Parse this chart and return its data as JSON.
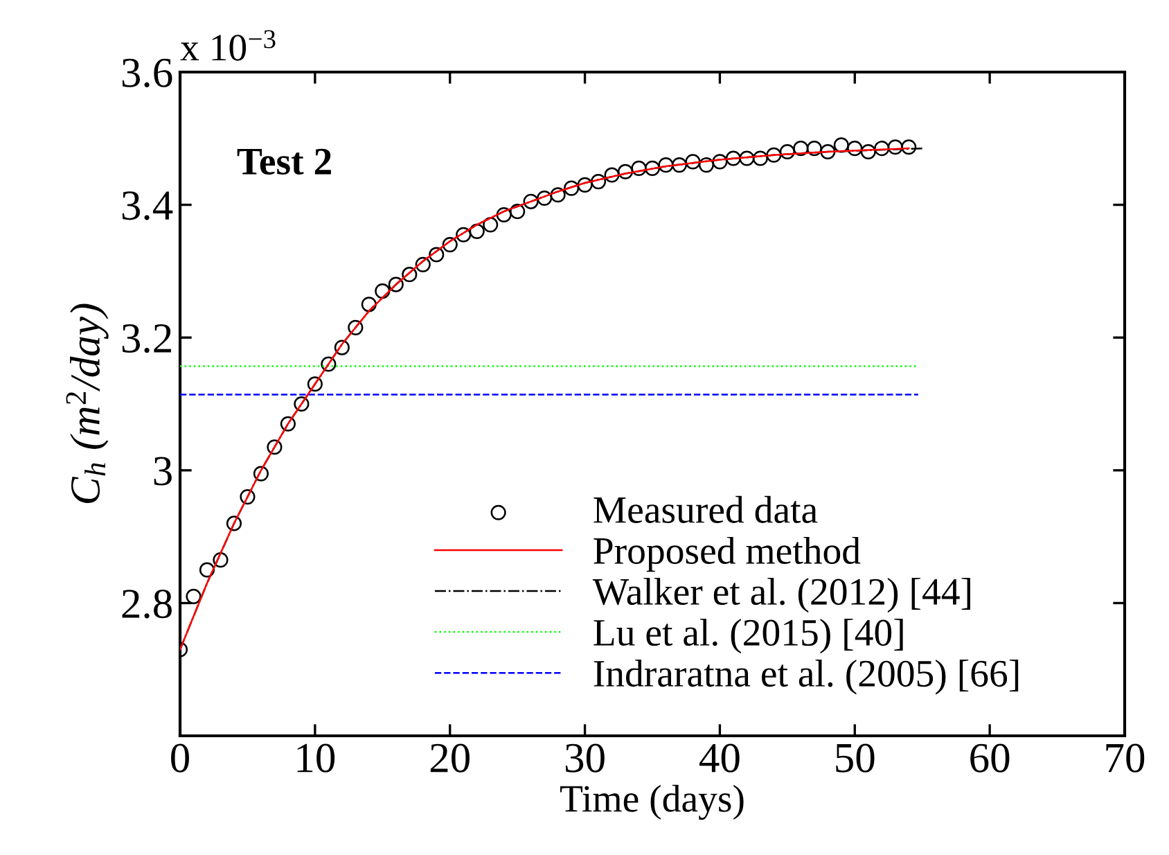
{
  "chart_data": {
    "type": "line",
    "xlabel": "Time (days)",
    "ylabel": "C$_{h}$ (m$^{2}$/day)",
    "annotations": [
      "x 10$^{−3}$",
      "Test 2"
    ],
    "xlim": [
      0,
      70
    ],
    "xticks": [
      0,
      10,
      20,
      30,
      40,
      50,
      60,
      70
    ],
    "ylim": [
      2.6,
      3.6
    ],
    "yticks": [
      2.8,
      3,
      3.2,
      3.4,
      3.6
    ],
    "grid": false,
    "legend": "bottom",
    "series": [
      {
        "name": "Measured data",
        "type": "scatter",
        "marker": "circle",
        "color": "#000000",
        "x": [
          0,
          1,
          2,
          3,
          4,
          5,
          6,
          7,
          8,
          9,
          10,
          11,
          12,
          13,
          14,
          15,
          16,
          17,
          18,
          19,
          20,
          21,
          22,
          23,
          24,
          25,
          26,
          27,
          28,
          29,
          30,
          31,
          32,
          33,
          34,
          35,
          36,
          37,
          38,
          39,
          40,
          41,
          42,
          43,
          44,
          45,
          46,
          47,
          48,
          49,
          50,
          51,
          52,
          53,
          54
        ],
        "values": [
          2.73,
          2.81,
          2.85,
          2.865,
          2.92,
          2.96,
          2.995,
          3.035,
          3.07,
          3.1,
          3.13,
          3.16,
          3.185,
          3.215,
          3.25,
          3.27,
          3.28,
          3.295,
          3.31,
          3.325,
          3.34,
          3.355,
          3.36,
          3.37,
          3.385,
          3.39,
          3.405,
          3.41,
          3.415,
          3.425,
          3.43,
          3.435,
          3.445,
          3.45,
          3.455,
          3.455,
          3.46,
          3.46,
          3.465,
          3.46,
          3.465,
          3.47,
          3.47,
          3.47,
          3.475,
          3.48,
          3.485,
          3.485,
          3.48,
          3.49,
          3.485,
          3.48,
          3.485,
          3.487,
          3.487
        ]
      },
      {
        "name": "Proposed method",
        "line_style": "solid",
        "color": "#ff0000",
        "x": [
          0,
          2,
          4,
          6,
          8,
          10,
          12,
          14,
          16,
          18,
          20,
          22,
          24,
          26,
          28,
          30,
          33,
          36,
          40,
          44,
          48,
          54
        ],
        "values": [
          2.73,
          2.83,
          2.92,
          3.0,
          3.07,
          3.13,
          3.19,
          3.24,
          3.28,
          3.315,
          3.345,
          3.37,
          3.39,
          3.405,
          3.42,
          3.433,
          3.447,
          3.458,
          3.468,
          3.475,
          3.48,
          3.485
        ]
      },
      {
        "name": "Walker et al. (2012) [44]",
        "line_style": "dashdot",
        "color": "#000000",
        "x": [
          0,
          2,
          4,
          6,
          8,
          10,
          12,
          14,
          16,
          18,
          20,
          22,
          24,
          26,
          28,
          30,
          33,
          36,
          40,
          44,
          48,
          55
        ],
        "values": [
          2.73,
          2.83,
          2.92,
          3.0,
          3.07,
          3.13,
          3.19,
          3.24,
          3.28,
          3.315,
          3.345,
          3.37,
          3.39,
          3.405,
          3.42,
          3.433,
          3.447,
          3.458,
          3.468,
          3.475,
          3.48,
          3.485
        ]
      },
      {
        "name": "Lu et al. (2015) [40]",
        "line_style": "dotted",
        "color": "#00ff00",
        "x": [
          0,
          54.7
        ],
        "values": [
          3.157,
          3.157
        ]
      },
      {
        "name": "Indraratna et al. (2005) [66]",
        "line_style": "dashed",
        "color": "#0000ff",
        "x": [
          0,
          54.7
        ],
        "values": [
          3.114,
          3.114
        ]
      }
    ]
  }
}
